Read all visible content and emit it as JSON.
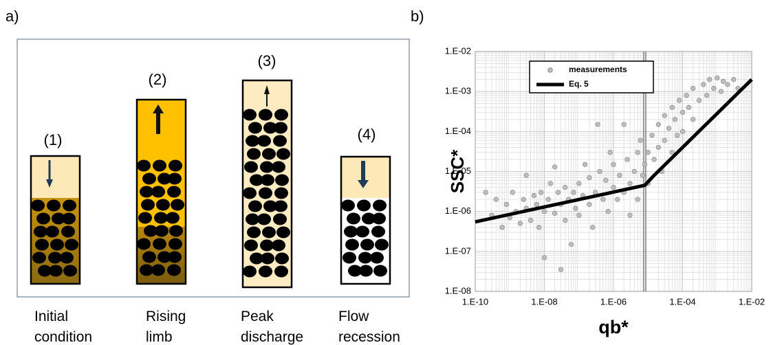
{
  "panel_a": {
    "label": "a)",
    "columns": [
      {
        "number": "(1)",
        "caption": "Initial condition"
      },
      {
        "number": "(2)",
        "caption": "Rising limb"
      },
      {
        "number": "(3)",
        "caption": "Peak discharge"
      },
      {
        "number": "(4)",
        "caption": "Flow recession"
      }
    ]
  },
  "chart_data": {
    "type": "scatter",
    "panel_label": "b)",
    "x_label": "qb*",
    "y_label": "SSC*",
    "x_scale": "log",
    "y_scale": "log",
    "xlim": [
      1e-10,
      0.01
    ],
    "ylim": [
      1e-08,
      0.01
    ],
    "xticks": [
      {
        "value": 1e-10,
        "label": "1.E-10"
      },
      {
        "value": 1e-08,
        "label": "1.E-08"
      },
      {
        "value": 1e-06,
        "label": "1.E-06"
      },
      {
        "value": 0.0001,
        "label": "1.E-04"
      },
      {
        "value": 0.01,
        "label": "1.E-02"
      }
    ],
    "yticks": [
      {
        "value": 1e-08,
        "label": "1.E-08"
      },
      {
        "value": 1e-07,
        "label": "1.E-07"
      },
      {
        "value": 1e-06,
        "label": "1.E-06"
      },
      {
        "value": 1e-05,
        "label": "1.E-05"
      },
      {
        "value": 0.0001,
        "label": "1.E-04"
      },
      {
        "value": 0.001,
        "label": "1.E-03"
      },
      {
        "value": 0.01,
        "label": "1.E-02"
      }
    ],
    "grid": true,
    "minor_grid": true,
    "legend": "top-left",
    "vline_x": 8e-06,
    "series": [
      {
        "name": "measurements",
        "mode": "markers",
        "color": "#bdbdbd",
        "x": [
          2e-10,
          3e-10,
          4e-10,
          6e-10,
          8e-10,
          1e-09,
          1.2e-09,
          1.5e-09,
          2e-09,
          2.5e-09,
          3e-09,
          3e-09,
          4e-09,
          5e-09,
          6e-09,
          7e-09,
          8e-09,
          1e-08,
          1e-08,
          1.3e-08,
          1.5e-08,
          2e-08,
          2e-08,
          2.5e-08,
          3e-08,
          3e-08,
          4e-08,
          4e-08,
          5e-08,
          6e-08,
          7e-08,
          8e-08,
          1e-07,
          1e-07,
          1.3e-07,
          1.5e-07,
          2e-07,
          2e-07,
          2.5e-07,
          3e-07,
          3.5e-07,
          4e-07,
          5e-07,
          6e-07,
          7e-07,
          8e-07,
          1e-06,
          1e-06,
          1.3e-06,
          1.5e-06,
          2e-06,
          2e-06,
          2.5e-06,
          3e-06,
          3e-06,
          4e-06,
          5e-06,
          5e-06,
          6e-06,
          7e-06,
          8e-06,
          1e-05,
          1e-05,
          1.3e-05,
          1.5e-05,
          2e-05,
          2e-05,
          2.5e-05,
          3e-05,
          3e-05,
          4e-05,
          5e-05,
          5e-05,
          6e-05,
          7e-05,
          8e-05,
          0.0001,
          0.0001,
          0.00013,
          0.00015,
          0.0002,
          0.0002,
          0.0003,
          0.0004,
          0.0005,
          0.0006,
          0.0008,
          0.001,
          0.0013,
          0.0015,
          0.002,
          0.003,
          0.004
        ],
        "values": [
          3e-06,
          8e-07,
          2e-06,
          4e-07,
          1.5e-06,
          7e-07,
          3e-06,
          1e-06,
          5e-07,
          2e-06,
          1.2e-06,
          8e-06,
          6e-07,
          2.5e-06,
          1.5e-06,
          4e-07,
          3e-06,
          1e-06,
          7e-08,
          2e-06,
          5e-06,
          9e-07,
          1.3e-05,
          3e-06,
          1.5e-06,
          3.5e-08,
          6e-07,
          4e-06,
          2e-06,
          1.5e-07,
          3e-06,
          1.2e-06,
          5e-06,
          8e-07,
          2.5e-06,
          1.5e-05,
          1.5e-06,
          7e-06,
          4e-07,
          3e-06,
          0.00015,
          1e-05,
          2e-06,
          6e-06,
          1e-06,
          3e-05,
          4e-06,
          1.5e-05,
          2e-06,
          8e-06,
          3e-06,
          0.00015,
          2e-05,
          5e-06,
          8e-07,
          1e-05,
          3e-05,
          2e-06,
          6e-05,
          8e-06,
          1.5e-05,
          3e-05,
          5e-06,
          8e-05,
          2e-05,
          0.00015,
          4e-05,
          1e-05,
          0.00025,
          6e-05,
          0.00012,
          0.0004,
          3e-05,
          0.0002,
          8e-05,
          0.0006,
          0.0003,
          0.0001,
          0.0008,
          0.0004,
          0.0012,
          0.0002,
          0.0006,
          0.0015,
          0.0008,
          0.002,
          0.0012,
          0.0022,
          0.001,
          0.0018,
          0.0015,
          0.002,
          0.0012
        ]
      },
      {
        "name": "Eq. 5",
        "mode": "line",
        "color": "#000000",
        "x": [
          1e-10,
          8e-06,
          1.5e-05,
          0.01
        ],
        "values": [
          5.5e-07,
          4.5e-06,
          8e-06,
          0.002
        ]
      }
    ]
  }
}
